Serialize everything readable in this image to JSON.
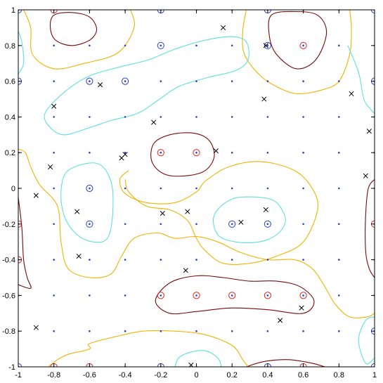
{
  "chart_data": {
    "type": "scatter",
    "title": "",
    "xlabel": "",
    "ylabel": "",
    "xlim": [
      -1,
      1
    ],
    "ylim": [
      -1,
      1
    ],
    "x_ticks": [
      "-1",
      "-0.8",
      "-0.6",
      "-0.4",
      "-0.2",
      "0",
      "0.2",
      "0.4",
      "0.6",
      "0.8",
      "1"
    ],
    "y_ticks": [
      "-1",
      "-0.8",
      "-0.6",
      "-0.4",
      "-0.2",
      "0",
      "0.2",
      "0.4",
      "0.6",
      "0.8",
      "1"
    ],
    "grid": false,
    "colors": {
      "contour_high": "#7a0a0a",
      "contour_mid_high": "#f0b400",
      "contour_mid_low": "#5fe0e0",
      "grid_dots": "#2a3fd0",
      "circle_blue": "#2a3fd0",
      "circle_red": "#e02020",
      "cross": "#000000"
    },
    "grid_points": {
      "x": [
        -1,
        -0.8,
        -0.6,
        -0.4,
        -0.2,
        0,
        0.2,
        0.4,
        0.6,
        0.8,
        1
      ],
      "y": [
        -1,
        -0.8,
        -0.6,
        -0.4,
        -0.2,
        0,
        0.2,
        0.4,
        0.6,
        0.8,
        1
      ]
    },
    "circled_points_blue": [
      [
        -1,
        1
      ],
      [
        -0.2,
        1
      ],
      [
        0.4,
        1
      ],
      [
        1,
        1
      ],
      [
        -0.2,
        0.8
      ],
      [
        0.4,
        0.8
      ],
      [
        -1,
        0.6
      ],
      [
        -0.6,
        0.6
      ],
      [
        -0.4,
        0.6
      ],
      [
        1,
        0.6
      ],
      [
        -0.6,
        0
      ],
      [
        -0.6,
        -0.2
      ],
      [
        0.2,
        -0.2
      ],
      [
        0.4,
        -0.2
      ],
      [
        1,
        -0.8
      ],
      [
        -1,
        -1
      ],
      [
        -0.2,
        -1
      ],
      [
        0.4,
        -1
      ],
      [
        1,
        -1
      ]
    ],
    "circled_points_red": [
      [
        -0.8,
        1
      ],
      [
        0.6,
        0.8
      ],
      [
        -0.2,
        0.2
      ],
      [
        0,
        0.2
      ],
      [
        -1,
        -0.2
      ],
      [
        1,
        -0.2
      ],
      [
        -1,
        -0.4
      ],
      [
        -0.2,
        -0.6
      ],
      [
        0,
        -0.6
      ],
      [
        0.2,
        -0.6
      ],
      [
        0.4,
        -0.6
      ],
      [
        0.6,
        -0.6
      ],
      [
        -0.8,
        -1
      ],
      [
        -0.6,
        -1
      ],
      [
        0.6,
        -1
      ]
    ],
    "cross_points": [
      [
        0.15,
        0.9
      ],
      [
        0.39,
        0.8
      ],
      [
        -0.54,
        0.58
      ],
      [
        -0.8,
        0.46
      ],
      [
        0.38,
        0.5
      ],
      [
        0.87,
        0.53
      ],
      [
        -0.24,
        0.37
      ],
      [
        0.97,
        0.32
      ],
      [
        -0.4,
        0.19
      ],
      [
        -0.42,
        0.17
      ],
      [
        0.11,
        0.21
      ],
      [
        -0.82,
        0.12
      ],
      [
        0.95,
        0.07
      ],
      [
        -0.9,
        -0.04
      ],
      [
        -0.67,
        -0.13
      ],
      [
        -0.19,
        -0.14
      ],
      [
        -0.05,
        -0.13
      ],
      [
        0.39,
        -0.12
      ],
      [
        0.25,
        -0.19
      ],
      [
        -0.66,
        -0.38
      ],
      [
        -0.06,
        -0.46
      ],
      [
        0.59,
        -0.67
      ],
      [
        0.47,
        -0.74
      ],
      [
        -0.9,
        -0.78
      ],
      [
        -0.03,
        -0.99
      ]
    ],
    "contours": [
      {
        "level": "high",
        "color": "contour_high",
        "path": [
          [
            -0.8,
            0.97
          ],
          [
            -0.7,
            0.985
          ],
          [
            -0.6,
            0.96
          ],
          [
            -0.56,
            0.89
          ],
          [
            -0.6,
            0.83
          ],
          [
            -0.7,
            0.8
          ],
          [
            -0.79,
            0.83
          ],
          [
            -0.82,
            0.9
          ],
          [
            -0.8,
            0.97
          ]
        ]
      },
      {
        "level": "high",
        "color": "contour_high",
        "path": [
          [
            0.42,
            0.97
          ],
          [
            0.55,
            0.99
          ],
          [
            0.68,
            0.97
          ],
          [
            0.73,
            0.87
          ],
          [
            0.67,
            0.72
          ],
          [
            0.56,
            0.67
          ],
          [
            0.45,
            0.75
          ],
          [
            0.41,
            0.85
          ],
          [
            0.42,
            0.97
          ]
        ]
      },
      {
        "level": "high",
        "color": "contour_high",
        "path": [
          [
            -0.24,
            0.25
          ],
          [
            -0.15,
            0.3
          ],
          [
            -0.02,
            0.31
          ],
          [
            0.07,
            0.27
          ],
          [
            0.1,
            0.18
          ],
          [
            0.05,
            0.1
          ],
          [
            -0.06,
            0.07
          ],
          [
            -0.18,
            0.08
          ],
          [
            -0.25,
            0.15
          ],
          [
            -0.24,
            0.25
          ]
        ]
      },
      {
        "level": "high",
        "color": "contour_high",
        "path": [
          [
            -0.15,
            -0.53
          ],
          [
            0,
            -0.49
          ],
          [
            0.15,
            -0.5
          ],
          [
            0.3,
            -0.52
          ],
          [
            0.45,
            -0.52
          ],
          [
            0.58,
            -0.55
          ],
          [
            0.66,
            -0.63
          ],
          [
            0.6,
            -0.7
          ],
          [
            0.4,
            -0.68
          ],
          [
            0.2,
            -0.67
          ],
          [
            0,
            -0.69
          ],
          [
            -0.15,
            -0.7
          ],
          [
            -0.23,
            -0.63
          ],
          [
            -0.15,
            -0.53
          ]
        ]
      },
      {
        "level": "high",
        "color": "contour_high",
        "path": [
          [
            1,
            0.05
          ],
          [
            0.965,
            0.0
          ],
          [
            0.95,
            -0.15
          ],
          [
            0.95,
            -0.35
          ],
          [
            0.97,
            -0.45
          ],
          [
            1,
            -0.5
          ]
        ]
      },
      {
        "level": "high",
        "color": "contour_high",
        "path": [
          [
            -1,
            -0.05
          ],
          [
            -0.98,
            -0.22
          ],
          [
            -0.97,
            -0.4
          ],
          [
            -0.95,
            -0.5
          ],
          [
            -0.93,
            -0.56
          ],
          [
            -1,
            -0.54
          ]
        ]
      },
      {
        "level": "high",
        "color": "contour_high",
        "path": [
          [
            0.28,
            -1
          ],
          [
            0.38,
            -0.97
          ],
          [
            0.52,
            -0.96
          ],
          [
            0.65,
            -0.98
          ],
          [
            0.72,
            -1
          ]
        ]
      },
      {
        "level": "mid_high",
        "color": "contour_mid_high",
        "path": [
          [
            -0.97,
            1
          ],
          [
            -0.93,
            0.9
          ],
          [
            -0.92,
            0.75
          ],
          [
            -0.8,
            0.67
          ],
          [
            -0.63,
            0.7
          ],
          [
            -0.44,
            0.76
          ],
          [
            -0.35,
            0.9
          ],
          [
            -0.37,
            1
          ]
        ]
      },
      {
        "level": "mid_high",
        "color": "contour_mid_high",
        "path": [
          [
            0.28,
            1
          ],
          [
            0.26,
            0.88
          ],
          [
            0.27,
            0.75
          ],
          [
            0.36,
            0.63
          ],
          [
            0.47,
            0.56
          ],
          [
            0.57,
            0.53
          ],
          [
            0.7,
            0.55
          ],
          [
            0.8,
            0.6
          ],
          [
            0.86,
            0.75
          ],
          [
            0.87,
            0.9
          ],
          [
            0.86,
            1
          ]
        ]
      },
      {
        "level": "mid_high",
        "color": "contour_mid_high",
        "path": [
          [
            -0.38,
            0.1
          ],
          [
            -0.43,
            0.05
          ],
          [
            -0.4,
            -0.03
          ],
          [
            -0.28,
            -0.08
          ],
          [
            -0.12,
            -0.08
          ],
          [
            0.0,
            -0.02
          ],
          [
            0.05,
            0.04
          ],
          [
            0.18,
            0.12
          ],
          [
            0.36,
            0.15
          ],
          [
            0.55,
            0.1
          ],
          [
            0.65,
            0.0
          ],
          [
            0.68,
            -0.12
          ],
          [
            0.6,
            -0.3
          ],
          [
            0.45,
            -0.38
          ],
          [
            0.3,
            -0.42
          ],
          [
            0.15,
            -0.42
          ],
          [
            0.05,
            -0.35
          ],
          [
            0.0,
            -0.28
          ],
          [
            -0.05,
            -0.18
          ],
          [
            -0.15,
            -0.12
          ],
          [
            -0.28,
            -0.1
          ],
          [
            -0.38,
            -0.02
          ],
          [
            -0.4,
            0.05
          ]
        ]
      },
      {
        "level": "mid_high",
        "color": "contour_mid_high",
        "path": [
          [
            -1,
            0.22
          ],
          [
            -0.96,
            0.2
          ],
          [
            -0.93,
            0.12
          ],
          [
            -0.88,
            0.02
          ],
          [
            -0.78,
            -0.1
          ],
          [
            -0.76,
            -0.3
          ],
          [
            -0.72,
            -0.45
          ],
          [
            -0.6,
            -0.5
          ],
          [
            -0.48,
            -0.48
          ],
          [
            -0.42,
            -0.38
          ],
          [
            -0.35,
            -0.28
          ],
          [
            -0.22,
            -0.25
          ],
          [
            -0.12,
            -0.28
          ],
          [
            0.0,
            -0.27
          ],
          [
            0.12,
            -0.3
          ],
          [
            0.25,
            -0.36
          ],
          [
            0.4,
            -0.4
          ],
          [
            0.55,
            -0.4
          ],
          [
            0.65,
            -0.45
          ],
          [
            0.72,
            -0.55
          ],
          [
            0.78,
            -0.65
          ],
          [
            0.86,
            -0.72
          ],
          [
            0.96,
            -0.72
          ],
          [
            1,
            -0.7
          ]
        ]
      },
      {
        "level": "mid_high",
        "color": "contour_mid_high",
        "path": [
          [
            -0.83,
            -1
          ],
          [
            -0.78,
            -0.96
          ],
          [
            -0.72,
            -0.93
          ],
          [
            -0.6,
            -0.9
          ],
          [
            -0.6,
            -0.87
          ],
          [
            -0.45,
            -0.83
          ],
          [
            -0.3,
            -0.8
          ],
          [
            -0.12,
            -0.8
          ],
          [
            0.05,
            -0.82
          ],
          [
            0.2,
            -0.88
          ],
          [
            0.26,
            -0.96
          ],
          [
            0.29,
            -1
          ]
        ]
      },
      {
        "level": "mid_low",
        "color": "contour_mid_low",
        "path": [
          [
            -0.85,
            0.42
          ],
          [
            -0.74,
            0.54
          ],
          [
            -0.6,
            0.63
          ],
          [
            -0.43,
            0.68
          ],
          [
            -0.27,
            0.72
          ],
          [
            -0.12,
            0.78
          ],
          [
            0.05,
            0.83
          ],
          [
            0.2,
            0.85
          ],
          [
            0.28,
            0.82
          ],
          [
            0.29,
            0.72
          ],
          [
            0.22,
            0.66
          ],
          [
            0.06,
            0.62
          ],
          [
            -0.1,
            0.57
          ],
          [
            -0.22,
            0.49
          ],
          [
            -0.33,
            0.42
          ],
          [
            -0.48,
            0.38
          ],
          [
            -0.6,
            0.34
          ],
          [
            -0.74,
            0.3
          ],
          [
            -0.82,
            0.34
          ],
          [
            -0.85,
            0.42
          ]
        ]
      },
      {
        "level": "mid_low",
        "color": "contour_mid_low",
        "path": [
          [
            -0.72,
            0.1
          ],
          [
            -0.56,
            0.14
          ],
          [
            -0.48,
            0.04
          ],
          [
            -0.47,
            -0.14
          ],
          [
            -0.5,
            -0.28
          ],
          [
            -0.58,
            -0.3
          ],
          [
            -0.67,
            -0.26
          ],
          [
            -0.74,
            -0.16
          ],
          [
            -0.76,
            -0.02
          ],
          [
            -0.72,
            0.1
          ]
        ]
      },
      {
        "level": "mid_low",
        "color": "contour_mid_low",
        "path": [
          [
            0.1,
            -0.15
          ],
          [
            0.2,
            -0.06
          ],
          [
            0.35,
            -0.05
          ],
          [
            0.45,
            -0.08
          ],
          [
            0.5,
            -0.18
          ],
          [
            0.45,
            -0.26
          ],
          [
            0.35,
            -0.3
          ],
          [
            0.22,
            -0.3
          ],
          [
            0.12,
            -0.26
          ],
          [
            0.1,
            -0.15
          ]
        ]
      },
      {
        "level": "mid_low",
        "color": "contour_mid_low",
        "path": [
          [
            -0.12,
            -1
          ],
          [
            -0.1,
            -0.95
          ],
          [
            -0.04,
            -0.92
          ],
          [
            0.05,
            -0.91
          ],
          [
            0.12,
            -0.95
          ],
          [
            0.14,
            -1
          ]
        ]
      },
      {
        "level": "mid_low",
        "color": "contour_mid_low",
        "path": [
          [
            1,
            -0.72
          ],
          [
            0.95,
            -0.74
          ],
          [
            0.91,
            -0.85
          ],
          [
            0.95,
            -0.98
          ],
          [
            1,
            -0.95
          ]
        ]
      },
      {
        "level": "mid_low",
        "color": "contour_mid_low",
        "path": [
          [
            0.85,
            0.8
          ],
          [
            0.91,
            0.65
          ],
          [
            0.94,
            0.5
          ],
          [
            0.98,
            0.44
          ],
          [
            1,
            0.42
          ]
        ]
      },
      {
        "level": "mid_low",
        "color": "contour_mid_low",
        "path": [
          [
            -1,
            0.88
          ],
          [
            -0.98,
            0.82
          ],
          [
            -0.97,
            0.7
          ],
          [
            -1,
            0.64
          ]
        ]
      }
    ]
  }
}
